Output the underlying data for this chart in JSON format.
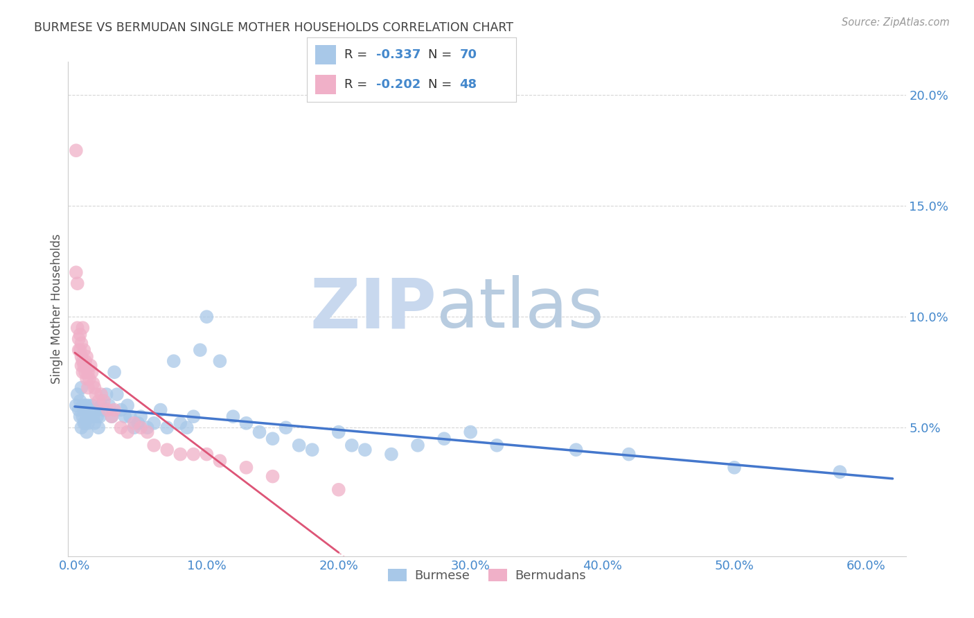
{
  "title": "BURMESE VS BERMUDAN SINGLE MOTHER HOUSEHOLDS CORRELATION CHART",
  "source": "Source: ZipAtlas.com",
  "ylabel": "Single Mother Households",
  "yticks": [
    0.0,
    0.05,
    0.1,
    0.15,
    0.2
  ],
  "ytick_labels": [
    "",
    "5.0%",
    "10.0%",
    "15.0%",
    "20.0%"
  ],
  "xticks": [
    0.0,
    0.1,
    0.2,
    0.3,
    0.4,
    0.5,
    0.6
  ],
  "xlim": [
    -0.005,
    0.63
  ],
  "ylim": [
    -0.008,
    0.215
  ],
  "burmese_R": -0.337,
  "burmese_N": 70,
  "bermudan_R": -0.202,
  "bermudan_N": 48,
  "burmese_color": "#a8c8e8",
  "bermudan_color": "#f0b0c8",
  "burmese_line_color": "#4477cc",
  "bermudan_line_color": "#dd5577",
  "background_color": "#ffffff",
  "grid_color": "#cccccc",
  "title_color": "#404040",
  "axis_label_color": "#4488cc",
  "watermark_color": "#dce8f5",
  "legend_text_color": "#333333",
  "burmese_x": [
    0.001,
    0.002,
    0.003,
    0.004,
    0.004,
    0.005,
    0.005,
    0.006,
    0.006,
    0.007,
    0.007,
    0.008,
    0.008,
    0.009,
    0.009,
    0.01,
    0.01,
    0.011,
    0.012,
    0.013,
    0.014,
    0.015,
    0.016,
    0.017,
    0.018,
    0.019,
    0.02,
    0.022,
    0.024,
    0.026,
    0.028,
    0.03,
    0.032,
    0.035,
    0.038,
    0.04,
    0.042,
    0.045,
    0.048,
    0.05,
    0.055,
    0.06,
    0.065,
    0.07,
    0.075,
    0.08,
    0.085,
    0.09,
    0.095,
    0.1,
    0.11,
    0.12,
    0.13,
    0.14,
    0.15,
    0.16,
    0.17,
    0.18,
    0.2,
    0.21,
    0.22,
    0.24,
    0.26,
    0.28,
    0.3,
    0.32,
    0.38,
    0.42,
    0.5,
    0.58
  ],
  "burmese_y": [
    0.06,
    0.065,
    0.058,
    0.055,
    0.062,
    0.05,
    0.068,
    0.055,
    0.06,
    0.052,
    0.058,
    0.06,
    0.052,
    0.055,
    0.048,
    0.052,
    0.06,
    0.055,
    0.058,
    0.06,
    0.055,
    0.052,
    0.058,
    0.055,
    0.05,
    0.055,
    0.06,
    0.058,
    0.065,
    0.06,
    0.055,
    0.075,
    0.065,
    0.058,
    0.055,
    0.06,
    0.055,
    0.05,
    0.052,
    0.055,
    0.05,
    0.052,
    0.058,
    0.05,
    0.08,
    0.052,
    0.05,
    0.055,
    0.085,
    0.1,
    0.08,
    0.055,
    0.052,
    0.048,
    0.045,
    0.05,
    0.042,
    0.04,
    0.048,
    0.042,
    0.04,
    0.038,
    0.042,
    0.045,
    0.048,
    0.042,
    0.04,
    0.038,
    0.032,
    0.03
  ],
  "bermudan_x": [
    0.001,
    0.001,
    0.002,
    0.002,
    0.003,
    0.003,
    0.004,
    0.004,
    0.005,
    0.005,
    0.005,
    0.006,
    0.006,
    0.006,
    0.007,
    0.007,
    0.008,
    0.008,
    0.009,
    0.009,
    0.01,
    0.01,
    0.011,
    0.012,
    0.013,
    0.014,
    0.015,
    0.016,
    0.018,
    0.02,
    0.022,
    0.025,
    0.028,
    0.03,
    0.035,
    0.04,
    0.045,
    0.05,
    0.055,
    0.06,
    0.07,
    0.08,
    0.09,
    0.1,
    0.11,
    0.13,
    0.15,
    0.2
  ],
  "bermudan_y": [
    0.175,
    0.12,
    0.115,
    0.095,
    0.09,
    0.085,
    0.092,
    0.085,
    0.082,
    0.078,
    0.088,
    0.095,
    0.08,
    0.075,
    0.085,
    0.078,
    0.08,
    0.075,
    0.082,
    0.072,
    0.075,
    0.068,
    0.072,
    0.078,
    0.075,
    0.07,
    0.068,
    0.065,
    0.062,
    0.065,
    0.062,
    0.058,
    0.055,
    0.058,
    0.05,
    0.048,
    0.052,
    0.05,
    0.048,
    0.042,
    0.04,
    0.038,
    0.038,
    0.038,
    0.035,
    0.032,
    0.028,
    0.022
  ]
}
